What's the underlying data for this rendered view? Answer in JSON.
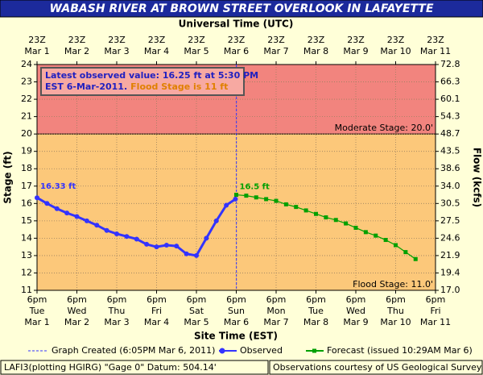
{
  "chart_data": {
    "type": "hydrograph",
    "title": "WABASH RIVER AT BROWN STREET OVERLOOK IN LAFAYETTE",
    "x_label": "Site Time (EST)",
    "x2_label": "Universal Time (UTC)",
    "y_label": "Stage (ft)",
    "y2_label": "Flow (kcfs)",
    "xlim": [
      "2011-03-01T18:00",
      "2011-03-11T18:00"
    ],
    "xticks": [
      {
        "value": "2011-03-01T18:00",
        "label": [
          "6pm",
          "Tue",
          "Mar 1"
        ]
      },
      {
        "value": "2011-03-02T18:00",
        "label": [
          "6pm",
          "Wed",
          "Mar 2"
        ]
      },
      {
        "value": "2011-03-03T18:00",
        "label": [
          "6pm",
          "Thu",
          "Mar 3"
        ]
      },
      {
        "value": "2011-03-04T18:00",
        "label": [
          "6pm",
          "Fri",
          "Mar 4"
        ]
      },
      {
        "value": "2011-03-05T18:00",
        "label": [
          "6pm",
          "Sat",
          "Mar 5"
        ]
      },
      {
        "value": "2011-03-06T18:00",
        "label": [
          "6pm",
          "Sun",
          "Mar 6"
        ]
      },
      {
        "value": "2011-03-07T18:00",
        "label": [
          "6pm",
          "Mon",
          "Mar 7"
        ]
      },
      {
        "value": "2011-03-08T18:00",
        "label": [
          "6pm",
          "Tue",
          "Mar 8"
        ]
      },
      {
        "value": "2011-03-09T18:00",
        "label": [
          "6pm",
          "Wed",
          "Mar 9"
        ]
      },
      {
        "value": "2011-03-10T18:00",
        "label": [
          "6pm",
          "Thu",
          "Mar 10"
        ]
      },
      {
        "value": "2011-03-11T18:00",
        "label": [
          "6pm",
          "Fri",
          "Mar 11"
        ]
      }
    ],
    "x2ticks": [
      {
        "value": "2011-03-01T18:00",
        "label": [
          "23Z",
          "Mar 1"
        ]
      },
      {
        "value": "2011-03-02T18:00",
        "label": [
          "23Z",
          "Mar 2"
        ]
      },
      {
        "value": "2011-03-03T18:00",
        "label": [
          "23Z",
          "Mar 3"
        ]
      },
      {
        "value": "2011-03-04T18:00",
        "label": [
          "23Z",
          "Mar 4"
        ]
      },
      {
        "value": "2011-03-05T18:00",
        "label": [
          "23Z",
          "Mar 5"
        ]
      },
      {
        "value": "2011-03-06T18:00",
        "label": [
          "23Z",
          "Mar 6"
        ]
      },
      {
        "value": "2011-03-07T18:00",
        "label": [
          "23Z",
          "Mar 7"
        ]
      },
      {
        "value": "2011-03-08T18:00",
        "label": [
          "23Z",
          "Mar 8"
        ]
      },
      {
        "value": "2011-03-09T18:00",
        "label": [
          "23Z",
          "Mar 9"
        ]
      },
      {
        "value": "2011-03-10T18:00",
        "label": [
          "23Z",
          "Mar 10"
        ]
      },
      {
        "value": "2011-03-11T18:00",
        "label": [
          "23Z",
          "Mar 11"
        ]
      }
    ],
    "ylim": [
      11,
      24
    ],
    "yticks": [
      11,
      12,
      13,
      14,
      15,
      16,
      17,
      18,
      19,
      20,
      21,
      22,
      23,
      24
    ],
    "y2ticks": [
      {
        "value": 17,
        "label": "17.0"
      },
      19.4,
      21.9,
      24.6,
      27.5,
      30.5,
      {
        "value": 34,
        "label": "34.0"
      },
      38.6,
      43.5,
      48.7,
      54.3,
      60.1,
      66.3,
      72.8
    ],
    "grid": true,
    "stages": [
      {
        "label": "Moderate Stage: 20.0'",
        "value": 20,
        "color": "#f2847e"
      },
      {
        "label": "Flood Stage: 11.0'",
        "value": 11,
        "color": "#fcc87a"
      }
    ],
    "created": {
      "x": "2011-03-06T18:05",
      "label": "Graph Created (6:05PM Mar 6, 2011)",
      "color": "#3333ff"
    },
    "annotation": {
      "lines": [
        "Latest observed value: 16.25 ft at 5:30 PM",
        "EST 6-Mar-2011."
      ],
      "highlight": "Flood Stage is 11 ft"
    },
    "series": [
      {
        "name": "Observed",
        "color": "#3333ff",
        "marker": "circle",
        "label": "16.33 ft",
        "x": [
          "2011-03-01T18:00",
          "2011-03-02T00:00",
          "2011-03-02T06:00",
          "2011-03-02T12:00",
          "2011-03-02T18:00",
          "2011-03-03T00:00",
          "2011-03-03T06:00",
          "2011-03-03T12:00",
          "2011-03-03T18:00",
          "2011-03-04T00:00",
          "2011-03-04T06:00",
          "2011-03-04T12:00",
          "2011-03-04T18:00",
          "2011-03-05T00:00",
          "2011-03-05T06:00",
          "2011-03-05T12:00",
          "2011-03-05T18:00",
          "2011-03-06T00:00",
          "2011-03-06T06:00",
          "2011-03-06T12:00",
          "2011-03-06T17:30"
        ],
        "values": [
          16.33,
          16.0,
          15.7,
          15.45,
          15.25,
          15.0,
          14.75,
          14.45,
          14.25,
          14.1,
          13.95,
          13.65,
          13.5,
          13.6,
          13.55,
          13.1,
          13.0,
          14.0,
          15.0,
          15.9,
          16.25
        ]
      },
      {
        "name": "Forecast (issued 10:29AM Mar 6)",
        "color": "#00a000",
        "marker": "square",
        "label": "16.5 ft",
        "x": [
          "2011-03-06T18:00",
          "2011-03-07T00:00",
          "2011-03-07T06:00",
          "2011-03-07T12:00",
          "2011-03-07T18:00",
          "2011-03-08T00:00",
          "2011-03-08T06:00",
          "2011-03-08T12:00",
          "2011-03-08T18:00",
          "2011-03-09T00:00",
          "2011-03-09T06:00",
          "2011-03-09T12:00",
          "2011-03-09T18:00",
          "2011-03-10T00:00",
          "2011-03-10T06:00",
          "2011-03-10T12:00",
          "2011-03-10T18:00",
          "2011-03-11T00:00",
          "2011-03-11T06:00"
        ],
        "values": [
          16.5,
          16.45,
          16.35,
          16.25,
          16.15,
          15.95,
          15.8,
          15.6,
          15.4,
          15.2,
          15.05,
          14.85,
          14.6,
          14.35,
          14.15,
          13.9,
          13.6,
          13.2,
          12.8
        ]
      }
    ],
    "footer_left": "LAFI3(plotting HGIRG) \"Gage 0\" Datum: 504.14'",
    "footer_right": "Observations courtesy of US Geological Survey"
  }
}
